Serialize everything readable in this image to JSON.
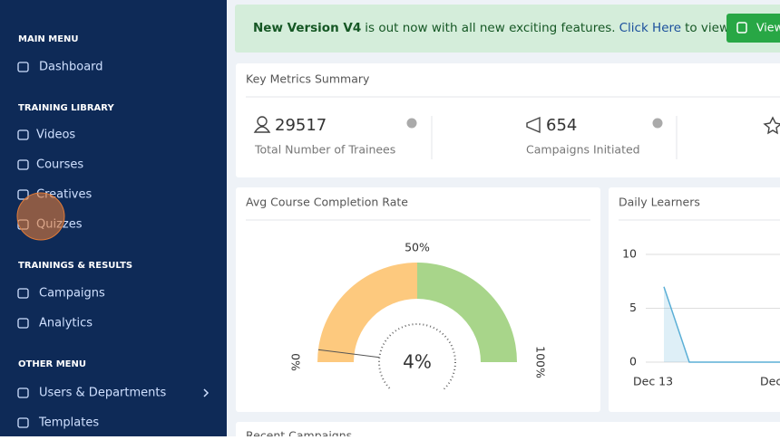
{
  "sidebar": {
    "sections": [
      {
        "heading": "MAIN MENU",
        "items": [
          "Dashboard"
        ]
      },
      {
        "heading": "TRAINING LIBRARY",
        "items": [
          "Videos",
          "Courses",
          "Creatives",
          "Quizzes"
        ]
      },
      {
        "heading": "TRAININGS & RESULTS",
        "items": [
          "Campaigns",
          "Analytics"
        ]
      },
      {
        "heading": "OTHER MENU",
        "items": [
          "Users & Departments",
          "Templates"
        ]
      }
    ]
  },
  "banner": {
    "bold": "New Version V4",
    "text": "is out now with all new exciting features.",
    "link": "Click Here",
    "text_after": "to view or",
    "button": "View"
  },
  "metrics": {
    "title": "Key Metrics Summary",
    "items": [
      {
        "value": 29517,
        "label": "Total Number of Trainees"
      },
      {
        "value": 654,
        "label": "Campaigns Initiated"
      }
    ]
  },
  "recent": {
    "title": "Recent Campaigns"
  },
  "chart_data": [
    {
      "type": "gauge",
      "title": "Avg Course Completion Rate",
      "value": 4,
      "value_label": "4%",
      "lim": [
        0,
        100
      ],
      "ticks": [
        {
          "value": 0,
          "label": "0%"
        },
        {
          "value": 50,
          "label": "50%"
        },
        {
          "value": 100,
          "label": "100%"
        }
      ],
      "colors": [
        "#fdc97e",
        "#a8d58a"
      ]
    },
    {
      "type": "line",
      "title": "Daily Learners",
      "categories": [
        "Dec 13",
        null,
        null,
        null,
        null,
        "Dec"
      ],
      "values": [
        7,
        0,
        0,
        0,
        0,
        0
      ],
      "color": "#5bafd6",
      "ylim": [
        0,
        10
      ],
      "yticks": [
        0,
        5,
        10
      ],
      "grid": true
    }
  ]
}
